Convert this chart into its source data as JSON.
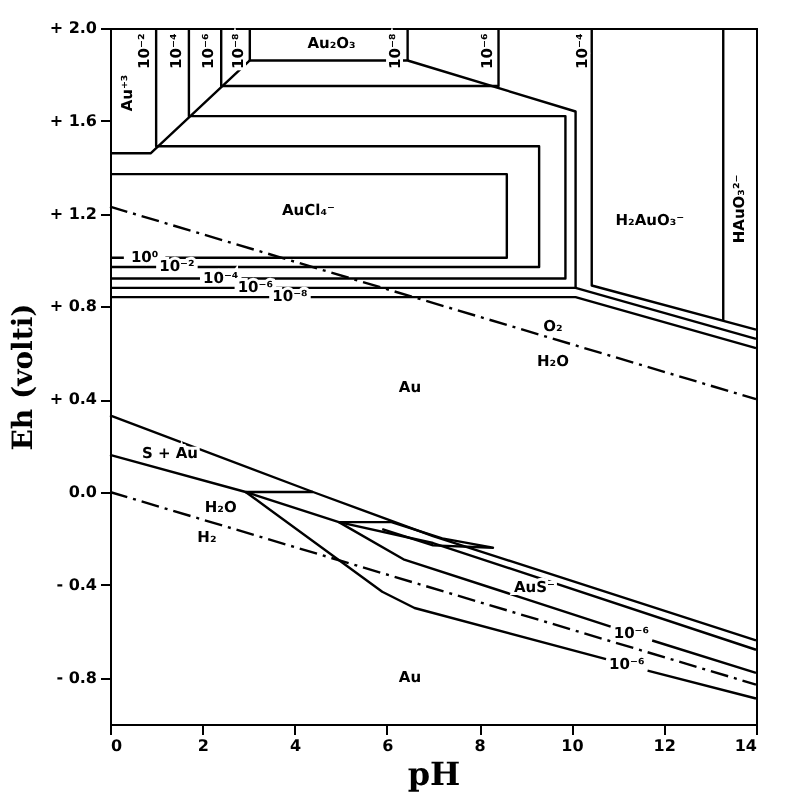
{
  "chart_data": {
    "type": "line",
    "xlabel": "pH",
    "ylabel": "Eh (volti)",
    "xlim": [
      0,
      14
    ],
    "xticks": [
      0,
      2,
      4,
      6,
      8,
      10,
      12,
      14
    ],
    "ylim": [
      -1.0,
      2.0
    ],
    "yticks": [
      {
        "value": -0.8,
        "label": "- 0.8"
      },
      {
        "value": -0.4,
        "label": "- 0.4"
      },
      {
        "value": 0,
        "label": "0.0"
      },
      {
        "value": 0.4,
        "label": "+ 0.4"
      },
      {
        "value": 0.8,
        "label": "+ 0.8"
      },
      {
        "value": 1.2,
        "label": "+ 1.2"
      },
      {
        "value": 1.6,
        "label": "+ 1.6"
      },
      {
        "value": 2.0,
        "label": "+ 2.0"
      }
    ],
    "grid": false,
    "marker": "none",
    "series": [
      {
        "color": "#000000",
        "line_style": "solid",
        "x": [
          0,
          0.88,
          3.03
        ],
        "values": [
          1.46,
          1.46,
          1.86
        ]
      },
      {
        "color": "#000000",
        "line_style": "solid",
        "x": [
          1.0,
          1.0,
          9.3,
          9.3,
          1.9,
          1.45,
          1.0,
          0
        ],
        "values": [
          2.0,
          1.49,
          1.49,
          0.97,
          0.97,
          null,
          0.97,
          0.97
        ]
      },
      {
        "color": "#000000",
        "line_style": "solid",
        "x": [
          1.71,
          1.71,
          9.87,
          9.87,
          2.85,
          2.4,
          1.95,
          0
        ],
        "values": [
          2.0,
          1.62,
          1.62,
          0.92,
          0.92,
          null,
          0.92,
          0.92
        ]
      },
      {
        "color": "#000000",
        "line_style": "solid",
        "x": [
          2.41,
          2.41,
          8.42,
          8.42
        ],
        "values": [
          2.0,
          1.75,
          1.75,
          2.0
        ]
      },
      {
        "color": "#000000",
        "line_style": "solid",
        "x": [
          3.03,
          3.03,
          6.45,
          10.09,
          10.09,
          3.6,
          3.15,
          2.7,
          0
        ],
        "values": [
          2.0,
          1.86,
          1.86,
          1.64,
          0.88,
          0.88,
          null,
          0.88,
          0.88
        ]
      },
      {
        "color": "#000000",
        "line_style": "solid",
        "x": [
          6.45,
          6.45
        ],
        "values": [
          2.0,
          1.86
        ]
      },
      {
        "color": "#000000",
        "line_style": "solid",
        "x": [
          0,
          8.6,
          8.6,
          1.2,
          0.75,
          0.3,
          0
        ],
        "values": [
          1.37,
          1.37,
          1.01,
          1.01,
          null,
          1.01,
          1.01
        ]
      },
      {
        "color": "#000000",
        "line_style": "solid",
        "x": [
          10.44,
          10.44,
          14
        ],
        "values": [
          2.0,
          0.89,
          0.7
        ]
      },
      {
        "color": "#000000",
        "line_style": "solid",
        "x": [
          0,
          3.45,
          3.9,
          4.35,
          10.09,
          14
        ],
        "values": [
          0.84,
          0.84,
          null,
          0.84,
          0.84,
          0.62
        ]
      },
      {
        "color": "#000000",
        "line_style": "solid",
        "x": [
          10.09,
          14
        ],
        "values": [
          0.88,
          0.66
        ]
      },
      {
        "color": "#000000",
        "line_style": "solid",
        "x": [
          13.29,
          13.29
        ],
        "values": [
          2.0,
          0.74
        ]
      },
      {
        "color": "#000000",
        "line_style": "dashed",
        "x": [
          0,
          14
        ],
        "values": [
          1.23,
          0.4
        ]
      },
      {
        "color": "#000000",
        "line_style": "dashed",
        "x": [
          0,
          14
        ],
        "values": [
          0.0,
          -0.83
        ]
      },
      {
        "color": "#000000",
        "line_style": "solid",
        "x": [
          0,
          4.4,
          7,
          14
        ],
        "values": [
          0.33,
          0.0,
          -0.19,
          -0.64
        ]
      },
      {
        "color": "#000000",
        "line_style": "solid",
        "x": [
          0,
          2.94,
          4.96,
          7,
          14
        ],
        "values": [
          0.16,
          0.0,
          -0.13,
          -0.22,
          -0.68
        ]
      },
      {
        "color": "#000000",
        "line_style": "solid",
        "x": [
          2.94,
          4.4
        ],
        "values": [
          0.0,
          0.0
        ]
      },
      {
        "color": "#000000",
        "line_style": "solid",
        "x": [
          2.94,
          5.9,
          6.6,
          10.75,
          11.2,
          11.65,
          14
        ],
        "values": [
          0.0,
          -0.43,
          -0.5,
          -0.72,
          null,
          -0.77,
          -0.89
        ]
      },
      {
        "color": "#000000",
        "line_style": "solid",
        "x": [
          4.96,
          6.36,
          10.85,
          11.3,
          11.75,
          14
        ],
        "values": [
          -0.13,
          -0.29,
          -0.58,
          null,
          -0.64,
          -0.78
        ]
      },
      {
        "color": "#000000",
        "line_style": "solid",
        "x": [
          4.96,
          6.1,
          7.2,
          8.3,
          7.0,
          5.9
        ],
        "values": [
          -0.13,
          -0.13,
          -0.2,
          -0.24,
          -0.23,
          -0.16
        ]
      }
    ],
    "annotations": [
      "Au⁺³",
      "10⁻²",
      "10⁻⁴",
      "10⁻⁶",
      "10⁻⁸",
      "Au₂O₃",
      "10⁻⁸",
      "10⁻⁶",
      "10⁻⁴",
      "AuCl₄⁻",
      "H₂AuO₃⁻",
      "HAuO₃²⁻",
      "10⁰",
      "10⁻²",
      "10⁻⁴",
      "10⁻⁶",
      "10⁻⁸",
      "O₂",
      "H₂O",
      "Au",
      "S + Au",
      "H₂O",
      "H₂",
      "AuS⁻",
      "10⁻⁶",
      "10⁻⁶",
      "Au"
    ]
  }
}
